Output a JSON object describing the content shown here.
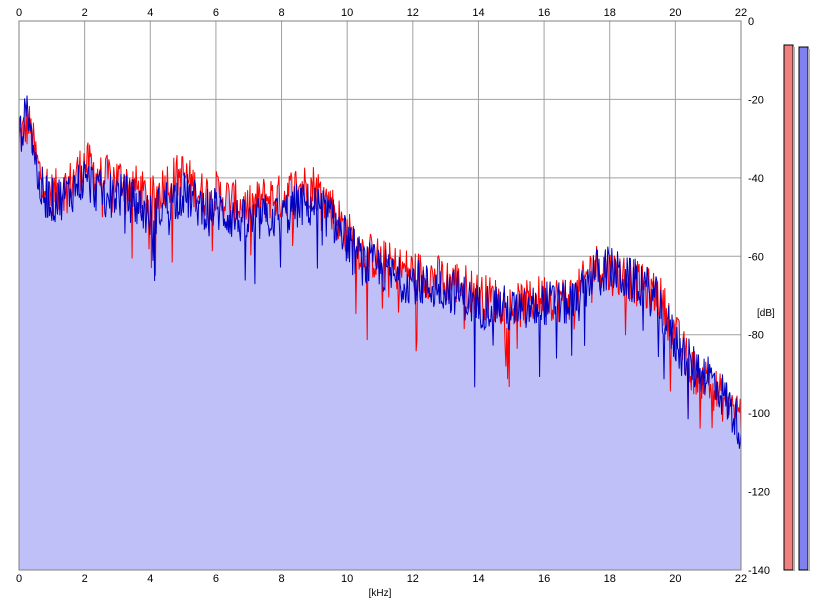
{
  "chart_data": {
    "type": "area",
    "xlabel": "[kHz]",
    "ylabel": "[dB]",
    "xlim": [
      0,
      22
    ],
    "ylim": [
      -140,
      0
    ],
    "x_ticks": [
      "0",
      "2",
      "4",
      "6",
      "8",
      "10",
      "12",
      "14",
      "16",
      "18",
      "20",
      "22"
    ],
    "y_ticks": [
      "-20",
      "-40",
      "-60",
      "-80",
      "-100",
      "-120",
      "-140"
    ],
    "grid": true,
    "colors": {
      "plot_background": "#ffffff",
      "fill": "#c0c0f8",
      "left_channel": "#ff0000",
      "right_channel": "#0000c0",
      "meter_left": "#f08080",
      "meter_right": "#8080f0",
      "grid": "#a0a0a0"
    },
    "series": [
      {
        "x": [
          0,
          0.3,
          0.6,
          1,
          1.5,
          2,
          2.5,
          3,
          3.5,
          4,
          4.5,
          5,
          5.5,
          6,
          6.5,
          7,
          7.5,
          8,
          8.5,
          9,
          9.5,
          10,
          10.5,
          11,
          11.5,
          12,
          12.5,
          13,
          13.5,
          14,
          14.5,
          15,
          15.5,
          16,
          16.5,
          17,
          17.5,
          18,
          18.5,
          19,
          19.5,
          20,
          20.5,
          21,
          21.5,
          22
        ],
        "values": [
          -30,
          -26,
          -38,
          -44,
          -42,
          -36,
          -40,
          -40,
          -42,
          -46,
          -41,
          -39,
          -44,
          -44,
          -46,
          -48,
          -45,
          -45,
          -42,
          -42,
          -47,
          -54,
          -59,
          -61,
          -63,
          -64,
          -65,
          -66,
          -67,
          -70,
          -71,
          -73,
          -72,
          -70,
          -71,
          -70,
          -62,
          -64,
          -65,
          -68,
          -70,
          -80,
          -89,
          -92,
          -97,
          -100
        ]
      },
      {
        "x": [
          0,
          0.3,
          0.6,
          1,
          1.5,
          2,
          2.5,
          3,
          3.5,
          4,
          4.5,
          5,
          5.5,
          6,
          6.5,
          7,
          7.5,
          8,
          8.5,
          9,
          9.5,
          10,
          10.5,
          11,
          11.5,
          12,
          12.5,
          13,
          13.5,
          14,
          14.5,
          15,
          15.5,
          16,
          16.5,
          17,
          17.5,
          18,
          18.5,
          19,
          19.5,
          20,
          20.5,
          21,
          21.5,
          22
        ],
        "values": [
          -30,
          -22,
          -42,
          -46,
          -44,
          -40,
          -44,
          -44,
          -46,
          -50,
          -46,
          -44,
          -47,
          -48,
          -50,
          -52,
          -50,
          -50,
          -47,
          -47,
          -50,
          -56,
          -62,
          -63,
          -66,
          -66,
          -68,
          -68,
          -70,
          -73,
          -72,
          -74,
          -74,
          -72,
          -72,
          -72,
          -64,
          -63,
          -66,
          -67,
          -72,
          -82,
          -88,
          -90,
          -96,
          -104
        ]
      }
    ]
  }
}
